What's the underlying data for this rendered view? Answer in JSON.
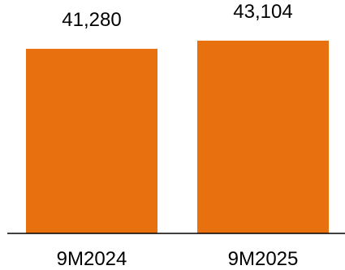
{
  "chart_data": {
    "type": "bar",
    "categories": [
      "9M2024",
      "9M2025"
    ],
    "values": [
      41280,
      43104
    ],
    "value_labels": [
      "41,280",
      "43,104"
    ],
    "title": "",
    "xlabel": "",
    "ylabel": "",
    "ylim": [
      0,
      43104
    ],
    "grid": false,
    "bar_color": "#E8700F",
    "axis_color": "#000000"
  }
}
